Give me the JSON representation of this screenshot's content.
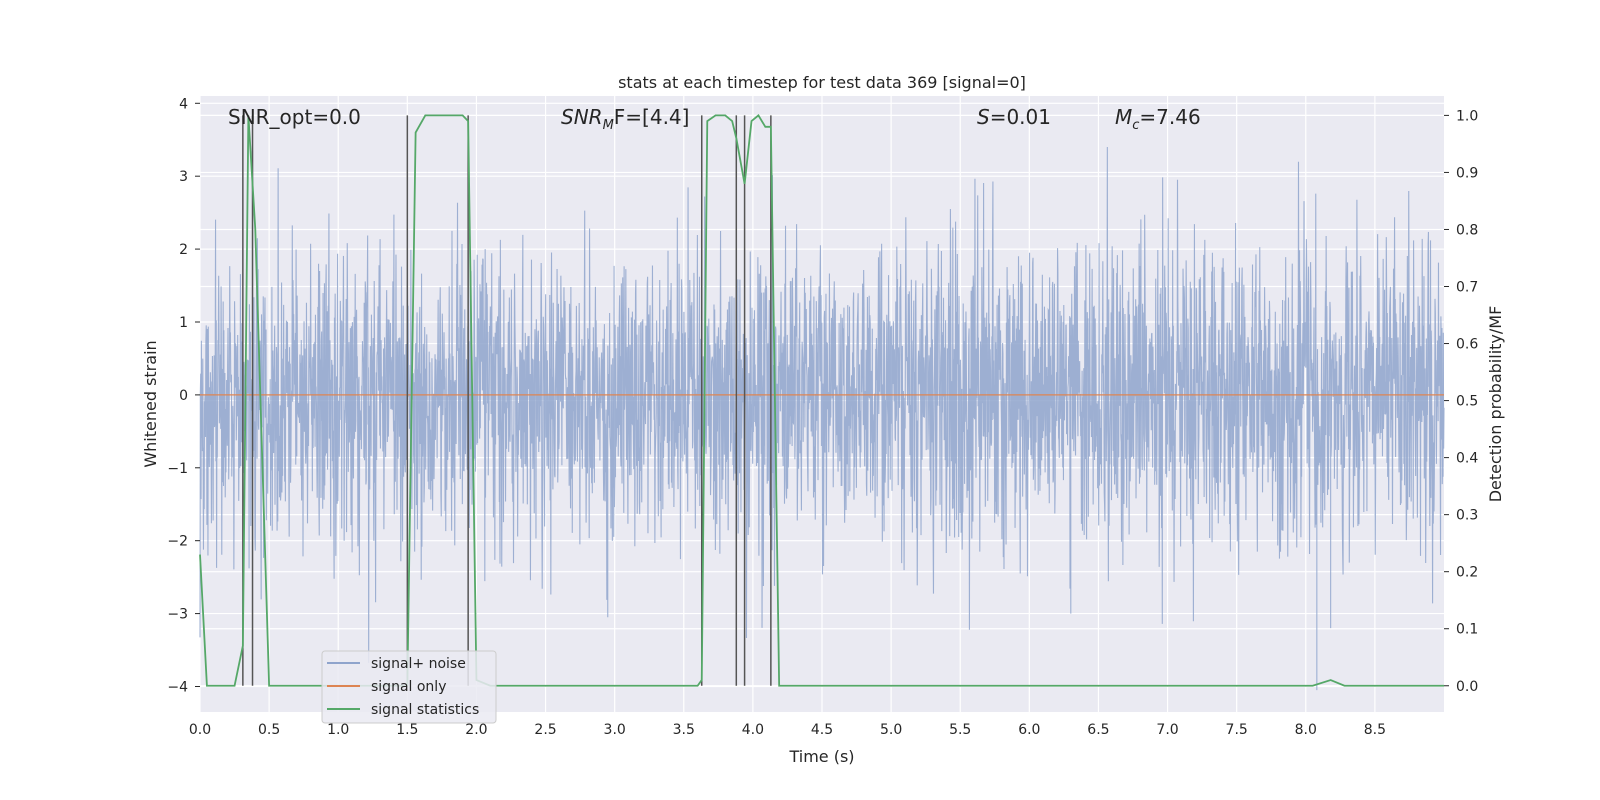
{
  "chart_data": {
    "type": "line",
    "title": "stats at each timestep for test data 369 [signal=0]",
    "xlabel": "Time (s)",
    "ylabel": "Whitened strain",
    "ylabel_right": "Detection probability/MF",
    "xlim": [
      0.0,
      9.0
    ],
    "ylim": [
      -4.35,
      4.1
    ],
    "ylim_right": [
      -0.046,
      1.034
    ],
    "xticks": [
      0.0,
      0.5,
      1.0,
      1.5,
      2.0,
      2.5,
      3.0,
      3.5,
      4.0,
      4.5,
      5.0,
      5.5,
      6.0,
      6.5,
      7.0,
      7.5,
      8.0,
      8.5
    ],
    "xtick_labels": [
      "0.0",
      "0.5",
      "1.0",
      "1.5",
      "2.0",
      "2.5",
      "3.0",
      "3.5",
      "4.0",
      "4.5",
      "5.0",
      "5.5",
      "6.0",
      "6.5",
      "7.0",
      "7.5",
      "8.0",
      "8.5"
    ],
    "yticks": [
      -4,
      -3,
      -2,
      -1,
      0,
      1,
      2,
      3,
      4
    ],
    "ytick_labels": [
      "−4",
      "−3",
      "−2",
      "−1",
      "0",
      "1",
      "2",
      "3",
      "4"
    ],
    "yticks_right": [
      0.0,
      0.1,
      0.2,
      0.3,
      0.4,
      0.5,
      0.6,
      0.7,
      0.8,
      0.9,
      1.0
    ],
    "ytick_labels_right": [
      "0.0",
      "0.1",
      "0.2",
      "0.3",
      "0.4",
      "0.5",
      "0.6",
      "0.7",
      "0.8",
      "0.9",
      "1.0"
    ],
    "grid": true,
    "legend_position": "lower-left",
    "annotations": {
      "snr_opt": "SNR_opt=0.0",
      "snr_mf_base": "SNR",
      "snr_mf_sub": "M",
      "snr_mf_rest": "F=[4.4]",
      "s_italic": "S",
      "s_rest": "=0.01",
      "mc_base": "M",
      "mc_sub": "c",
      "mc_rest": "=7.46"
    },
    "vertical_markers_x": [
      0.31,
      0.38,
      1.5,
      1.94,
      3.63,
      3.88,
      3.94,
      4.13
    ],
    "series": [
      {
        "name": "signal+ noise",
        "color": "#8fa4cc",
        "description": "whitened noise, approx. standard normal, sampled densely from 0 to 9 s",
        "noise_sigma": 1.0,
        "noise_min": -4.05,
        "noise_max": 3.4,
        "notable_spikes": [
          [
            0.38,
            3.35
          ],
          [
            8.08,
            -4.05
          ],
          [
            8.18,
            -3.2
          ],
          [
            2.95,
            -3.05
          ],
          [
            6.3,
            -3.0
          ]
        ]
      },
      {
        "name": "signal only",
        "color": "#dd8452",
        "x": [
          0.0,
          9.0
        ],
        "values": [
          0.0,
          0.0
        ]
      },
      {
        "name": "signal statistics",
        "color": "#55a868",
        "axis": "right",
        "x": [
          0.0,
          0.05,
          0.25,
          0.31,
          0.35,
          0.4,
          0.5,
          0.6,
          1.5,
          1.56,
          1.63,
          1.9,
          1.94,
          2.0,
          2.1,
          3.6,
          3.63,
          3.67,
          3.73,
          3.8,
          3.85,
          3.88,
          3.94,
          3.99,
          4.04,
          4.09,
          4.13,
          4.19,
          4.25,
          7.4,
          8.05,
          8.18,
          8.28,
          9.0
        ],
        "values": [
          0.23,
          0.0,
          0.0,
          0.07,
          1.0,
          0.8,
          0.0,
          0.0,
          0.0,
          0.97,
          1.0,
          1.0,
          0.99,
          0.01,
          0.0,
          0.0,
          0.01,
          0.99,
          1.0,
          1.0,
          0.99,
          0.96,
          0.88,
          0.99,
          1.0,
          0.98,
          0.98,
          0.0,
          0.0,
          0.0,
          0.0,
          0.01,
          0.0,
          0.0
        ]
      }
    ]
  }
}
